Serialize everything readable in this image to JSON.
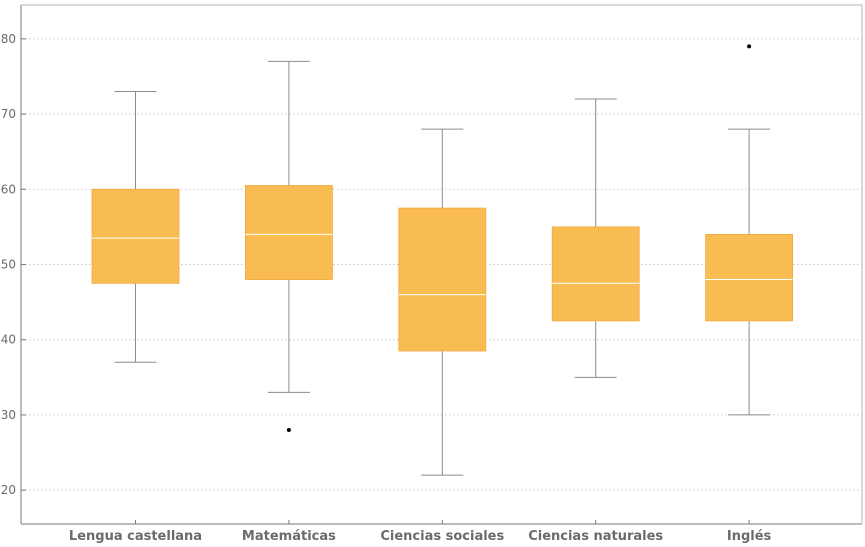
{
  "chart_data": {
    "type": "boxplot",
    "title": "",
    "xlabel": "",
    "ylabel": "",
    "ylim": [
      15.5,
      84.5
    ],
    "yticks": [
      20,
      30,
      40,
      50,
      60,
      70,
      80
    ],
    "grid": "horizontal dotted",
    "categories": [
      "Lengua castellana",
      "Matemáticas",
      "Ciencias sociales",
      "Ciencias naturales",
      "Inglés"
    ],
    "boxes": [
      {
        "whisker_low": 37,
        "q1": 47.5,
        "median": 53.5,
        "q3": 60,
        "whisker_high": 73,
        "outliers": []
      },
      {
        "whisker_low": 33,
        "q1": 48,
        "median": 54,
        "q3": 60.5,
        "whisker_high": 77,
        "outliers": [
          28
        ]
      },
      {
        "whisker_low": 22,
        "q1": 38.5,
        "median": 46,
        "q3": 57.5,
        "whisker_high": 68,
        "outliers": []
      },
      {
        "whisker_low": 35,
        "q1": 42.5,
        "median": 47.5,
        "q3": 55,
        "whisker_high": 72,
        "outliers": []
      },
      {
        "whisker_low": 30,
        "q1": 42.5,
        "median": 48,
        "q3": 54,
        "whisker_high": 68,
        "outliers": [
          79
        ]
      }
    ],
    "colors": {
      "box_fill": "#F9BC52",
      "median_line": "#FFFFFF",
      "whisker": "#8C8C8C",
      "outlier": "#000000",
      "grid": "#C8C8C8",
      "frame": "#7A7A7A"
    }
  }
}
